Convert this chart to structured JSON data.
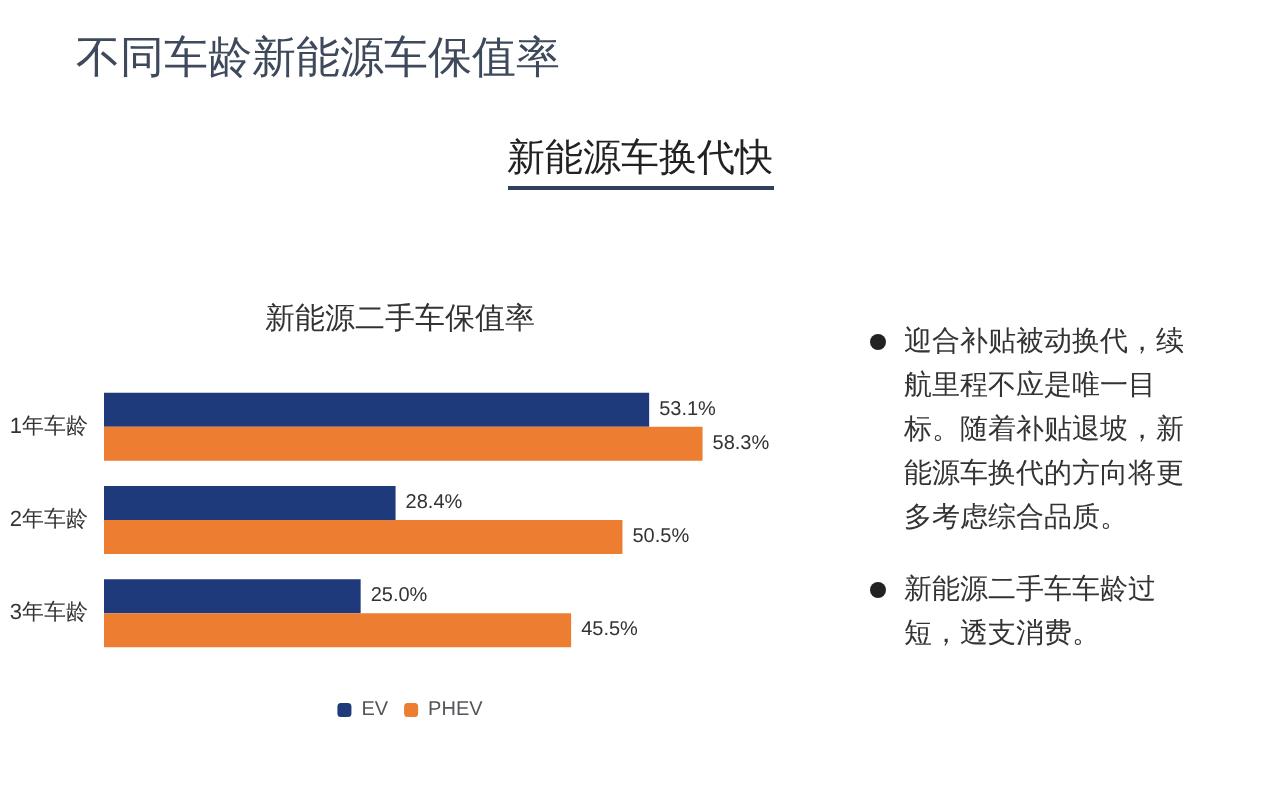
{
  "chart_data": {
    "type": "bar",
    "orientation": "horizontal",
    "title": "不同车龄新能源车保值率",
    "subtitle": "新能源车换代快",
    "annotations": [
      "新能源二手车保值率",
      "迎合补贴被动换代，续航里程不应是唯一目标。随着补贴退坡，新能源车换代的方向将更多考虑综合品质。",
      "新能源二手车车龄过短，透支消费。"
    ],
    "categories": [
      "1年车龄",
      "2年车龄",
      "3年车龄"
    ],
    "series": [
      {
        "name": "EV",
        "color": "#1f3a7a",
        "values": [
          53.1,
          28.4,
          25.0
        ],
        "value_labels": [
          "53.1%",
          "28.4%",
          "25.0%"
        ]
      },
      {
        "name": "PHEV",
        "color": "#ed7d31",
        "values": [
          58.3,
          50.5,
          45.5
        ],
        "value_labels": [
          "58.3%",
          "50.5%",
          "45.5%"
        ]
      }
    ],
    "grid": false,
    "legend": "bottom"
  }
}
